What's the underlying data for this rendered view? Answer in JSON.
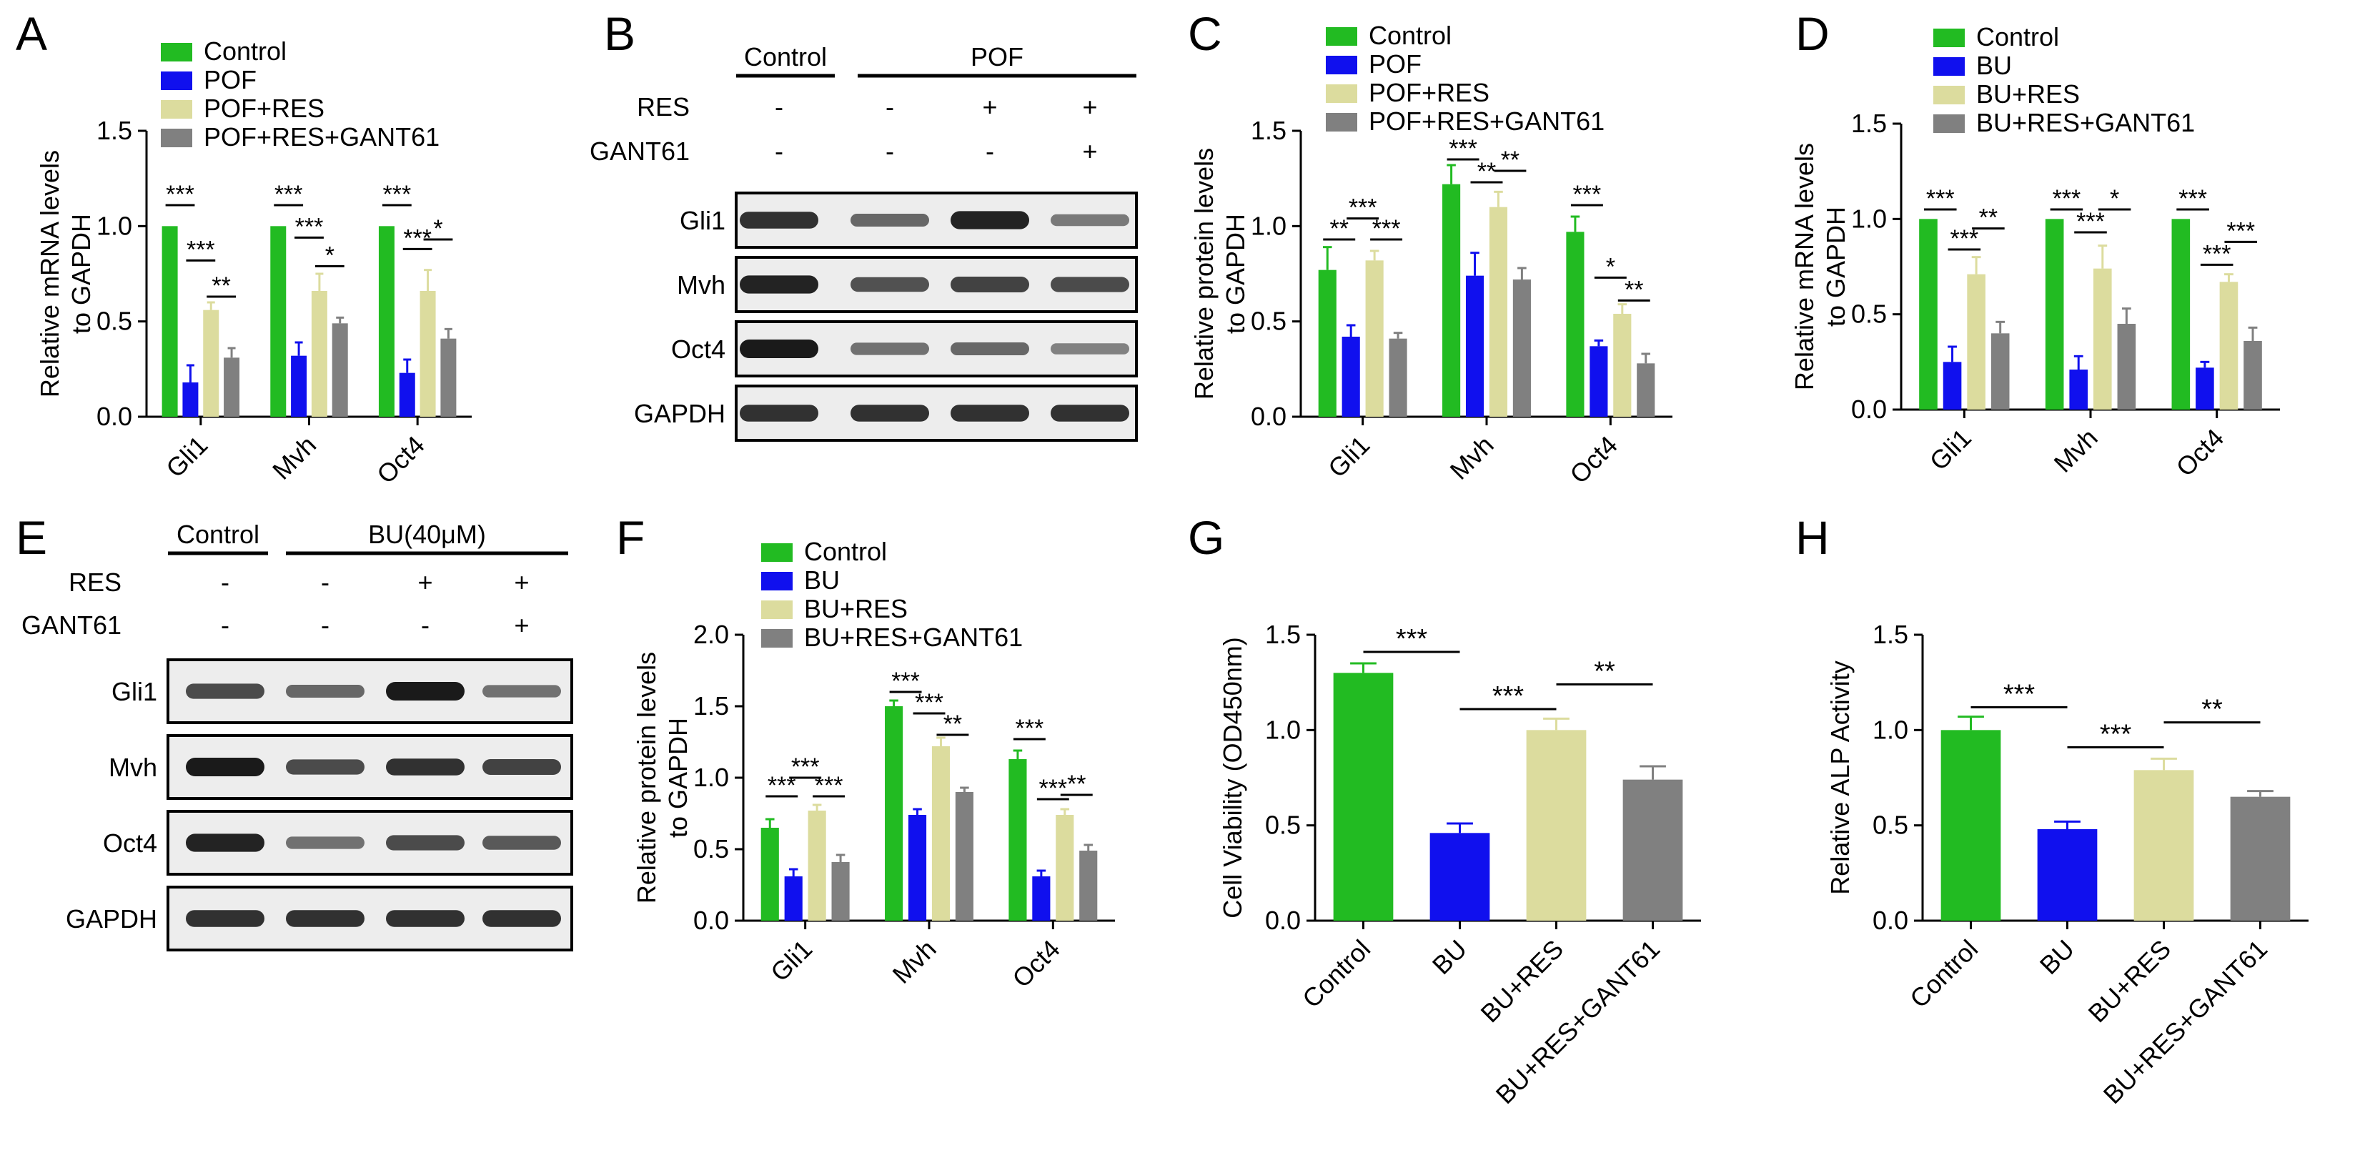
{
  "colors": {
    "Control": "#22bb22",
    "POF": "#1010ee",
    "BU": "#1010ee",
    "POF+RES": "#dcdc9e",
    "BU+RES": "#dcdc9e",
    "POF+RES+GANT61": "#808080",
    "BU+RES+GANT61": "#808080",
    "band": "#1a1a1a"
  },
  "chart_data": [
    {
      "id": "A",
      "type": "bar",
      "panel_label": "A",
      "ylabel": [
        "Relative mRNA levels",
        "to GAPDH"
      ],
      "ylim": [
        0,
        1.5
      ],
      "yticks": [
        "0.0",
        "0.5",
        "1.0",
        "1.5"
      ],
      "categories": [
        "Gli1",
        "Mvh",
        "Oct4"
      ],
      "series": [
        {
          "name": "Control",
          "values": [
            1.0,
            1.0,
            1.0
          ],
          "errors": [
            0,
            0,
            0
          ]
        },
        {
          "name": "POF",
          "values": [
            0.18,
            0.32,
            0.23
          ],
          "errors": [
            0.09,
            0.07,
            0.07
          ]
        },
        {
          "name": "POF+RES",
          "values": [
            0.56,
            0.66,
            0.66
          ],
          "errors": [
            0.04,
            0.09,
            0.11
          ]
        },
        {
          "name": "POF+RES+GANT61",
          "values": [
            0.31,
            0.49,
            0.41
          ],
          "errors": [
            0.05,
            0.03,
            0.05
          ]
        }
      ],
      "legend": "top-left",
      "sig": [
        {
          "cat": 0,
          "from": 0,
          "to": 1,
          "y": 1.11,
          "text": "***"
        },
        {
          "cat": 0,
          "from": 1,
          "to": 2,
          "y": 0.82,
          "text": "***"
        },
        {
          "cat": 0,
          "from": 2,
          "to": 3,
          "y": 0.63,
          "text": "**"
        },
        {
          "cat": 1,
          "from": 0,
          "to": 1,
          "y": 1.11,
          "text": "***"
        },
        {
          "cat": 1,
          "from": 1,
          "to": 2,
          "y": 0.94,
          "text": "***"
        },
        {
          "cat": 1,
          "from": 2,
          "to": 3,
          "y": 0.79,
          "text": "*"
        },
        {
          "cat": 2,
          "from": 0,
          "to": 1,
          "y": 1.11,
          "text": "***"
        },
        {
          "cat": 2,
          "from": 1,
          "to": 2,
          "y": 0.88,
          "text": "***"
        },
        {
          "cat": 2,
          "from": 2,
          "to": 3,
          "y": 0.93,
          "text": "*"
        }
      ]
    },
    {
      "id": "C",
      "type": "bar",
      "panel_label": "C",
      "ylabel": [
        "Relative protein levels",
        "to GAPDH"
      ],
      "ylim": [
        0,
        1.5
      ],
      "yticks": [
        "0.0",
        "0.5",
        "1.0",
        "1.5"
      ],
      "categories": [
        "Gli1",
        "Mvh",
        "Oct4"
      ],
      "series": [
        {
          "name": "Control",
          "values": [
            0.77,
            1.22,
            0.97
          ],
          "errors": [
            0.12,
            0.1,
            0.08
          ]
        },
        {
          "name": "POF",
          "values": [
            0.42,
            0.74,
            0.37
          ],
          "errors": [
            0.06,
            0.12,
            0.03
          ]
        },
        {
          "name": "POF+RES",
          "values": [
            0.82,
            1.1,
            0.54
          ],
          "errors": [
            0.05,
            0.08,
            0.05
          ]
        },
        {
          "name": "POF+RES+GANT61",
          "values": [
            0.41,
            0.72,
            0.28
          ],
          "errors": [
            0.03,
            0.06,
            0.05
          ]
        }
      ],
      "legend": "top-left",
      "sig": [
        {
          "cat": 0,
          "from": 0,
          "to": 1,
          "y": 0.93,
          "text": "**"
        },
        {
          "cat": 0,
          "from": 1,
          "to": 2,
          "y": 1.04,
          "text": "***"
        },
        {
          "cat": 0,
          "from": 2,
          "to": 3,
          "y": 0.93,
          "text": "***"
        },
        {
          "cat": 1,
          "from": 0,
          "to": 1,
          "y": 1.35,
          "text": "***"
        },
        {
          "cat": 1,
          "from": 1,
          "to": 2,
          "y": 1.23,
          "text": "**"
        },
        {
          "cat": 1,
          "from": 2,
          "to": 3,
          "y": 1.29,
          "text": "**"
        },
        {
          "cat": 2,
          "from": 0,
          "to": 1,
          "y": 1.11,
          "text": "***"
        },
        {
          "cat": 2,
          "from": 1,
          "to": 2,
          "y": 0.73,
          "text": "*"
        },
        {
          "cat": 2,
          "from": 2,
          "to": 3,
          "y": 0.61,
          "text": "**"
        }
      ]
    },
    {
      "id": "D",
      "type": "bar",
      "panel_label": "D",
      "ylabel": [
        "Relative mRNA levels",
        "to GAPDH"
      ],
      "ylim": [
        0,
        1.5
      ],
      "yticks": [
        "0.0",
        "0.5",
        "1.0",
        "1.5"
      ],
      "categories": [
        "Gli1",
        "Mvh",
        "Oct4"
      ],
      "series": [
        {
          "name": "Control",
          "values": [
            1.0,
            1.0,
            1.0
          ],
          "errors": [
            0,
            0,
            0
          ]
        },
        {
          "name": "BU",
          "values": [
            0.25,
            0.21,
            0.22
          ],
          "errors": [
            0.08,
            0.07,
            0.03
          ]
        },
        {
          "name": "BU+RES",
          "values": [
            0.71,
            0.74,
            0.67
          ],
          "errors": [
            0.09,
            0.12,
            0.04
          ]
        },
        {
          "name": "BU+RES+GANT61",
          "values": [
            0.4,
            0.45,
            0.36
          ],
          "errors": [
            0.06,
            0.08,
            0.07
          ]
        }
      ],
      "legend": "top-left",
      "sig": [
        {
          "cat": 0,
          "from": 0,
          "to": 1,
          "y": 1.05,
          "text": "***"
        },
        {
          "cat": 0,
          "from": 1,
          "to": 2,
          "y": 0.84,
          "text": "***"
        },
        {
          "cat": 0,
          "from": 2,
          "to": 3,
          "y": 0.95,
          "text": "**"
        },
        {
          "cat": 1,
          "from": 0,
          "to": 1,
          "y": 1.05,
          "text": "***"
        },
        {
          "cat": 1,
          "from": 1,
          "to": 2,
          "y": 0.93,
          "text": "***"
        },
        {
          "cat": 1,
          "from": 2,
          "to": 3,
          "y": 1.05,
          "text": "*"
        },
        {
          "cat": 2,
          "from": 0,
          "to": 1,
          "y": 1.05,
          "text": "***"
        },
        {
          "cat": 2,
          "from": 1,
          "to": 2,
          "y": 0.76,
          "text": "***"
        },
        {
          "cat": 2,
          "from": 2,
          "to": 3,
          "y": 0.88,
          "text": "***"
        }
      ]
    },
    {
      "id": "F",
      "type": "bar",
      "panel_label": "F",
      "ylabel": [
        "Relative protein levels",
        "to GAPDH"
      ],
      "ylim": [
        0,
        2.0
      ],
      "yticks": [
        "0.0",
        "0.5",
        "1.0",
        "1.5",
        "2.0"
      ],
      "categories": [
        "Gli1",
        "Mvh",
        "Oct4"
      ],
      "series": [
        {
          "name": "Control",
          "values": [
            0.65,
            1.5,
            1.13
          ],
          "errors": [
            0.06,
            0.04,
            0.06
          ]
        },
        {
          "name": "BU",
          "values": [
            0.31,
            0.74,
            0.31
          ],
          "errors": [
            0.05,
            0.04,
            0.04
          ]
        },
        {
          "name": "BU+RES",
          "values": [
            0.77,
            1.22,
            0.74
          ],
          "errors": [
            0.04,
            0.06,
            0.04
          ]
        },
        {
          "name": "BU+RES+GANT61",
          "values": [
            0.41,
            0.9,
            0.49
          ],
          "errors": [
            0.05,
            0.03,
            0.04
          ]
        }
      ],
      "legend": "top-left",
      "sig": [
        {
          "cat": 0,
          "from": 0,
          "to": 1,
          "y": 0.87,
          "text": "***"
        },
        {
          "cat": 0,
          "from": 1,
          "to": 2,
          "y": 1.0,
          "text": "***"
        },
        {
          "cat": 0,
          "from": 2,
          "to": 3,
          "y": 0.87,
          "text": "***"
        },
        {
          "cat": 1,
          "from": 0,
          "to": 1,
          "y": 1.6,
          "text": "***"
        },
        {
          "cat": 1,
          "from": 1,
          "to": 2,
          "y": 1.45,
          "text": "***"
        },
        {
          "cat": 1,
          "from": 2,
          "to": 3,
          "y": 1.3,
          "text": "**"
        },
        {
          "cat": 2,
          "from": 0,
          "to": 1,
          "y": 1.27,
          "text": "***"
        },
        {
          "cat": 2,
          "from": 1,
          "to": 2,
          "y": 0.85,
          "text": "***"
        },
        {
          "cat": 2,
          "from": 2,
          "to": 3,
          "y": 0.88,
          "text": "**"
        }
      ]
    },
    {
      "id": "G",
      "type": "bar",
      "panel_label": "G",
      "ylabel": [
        "Cell Viability (OD450nm)"
      ],
      "ylim": [
        0,
        1.5
      ],
      "yticks": [
        "0.0",
        "0.5",
        "1.0",
        "1.5"
      ],
      "categories": [
        "Control",
        "BU",
        "BU+RES",
        "BU+RES+GANT61"
      ],
      "values": [
        1.3,
        0.46,
        1.0,
        0.74
      ],
      "errors": [
        0.05,
        0.05,
        0.06,
        0.07
      ],
      "sig": [
        {
          "from": 0,
          "to": 1,
          "y": 1.41,
          "text": "***"
        },
        {
          "from": 1,
          "to": 2,
          "y": 1.11,
          "text": "***"
        },
        {
          "from": 2,
          "to": 3,
          "y": 1.24,
          "text": "**"
        }
      ]
    },
    {
      "id": "H",
      "type": "bar",
      "panel_label": "H",
      "ylabel": [
        "Relative ALP Activity"
      ],
      "ylim": [
        0,
        1.5
      ],
      "yticks": [
        "0.0",
        "0.5",
        "1.0",
        "1.5"
      ],
      "categories": [
        "Control",
        "BU",
        "BU+RES",
        "BU+RES+GANT61"
      ],
      "values": [
        1.0,
        0.48,
        0.79,
        0.65
      ],
      "errors": [
        0.07,
        0.04,
        0.06,
        0.03
      ],
      "sig": [
        {
          "from": 0,
          "to": 1,
          "y": 1.12,
          "text": "***"
        },
        {
          "from": 1,
          "to": 2,
          "y": 0.91,
          "text": "***"
        },
        {
          "from": 2,
          "to": 3,
          "y": 1.04,
          "text": "**"
        }
      ]
    }
  ],
  "blots": [
    {
      "id": "B",
      "panel_label": "B",
      "group_control": "Control",
      "group_treated": "POF",
      "treat_rows": [
        {
          "label": "RES",
          "marks": [
            "-",
            "-",
            "+",
            "+"
          ]
        },
        {
          "label": "GANT61",
          "marks": [
            "-",
            "-",
            "-",
            "+"
          ]
        }
      ],
      "band_rows": [
        {
          "label": "Gli1",
          "intensity": [
            0.85,
            0.5,
            0.95,
            0.4
          ]
        },
        {
          "label": "Mvh",
          "intensity": [
            0.95,
            0.65,
            0.75,
            0.7
          ]
        },
        {
          "label": "Oct4",
          "intensity": [
            1.0,
            0.45,
            0.5,
            0.35
          ]
        },
        {
          "label": "GAPDH",
          "intensity": [
            0.85,
            0.85,
            0.85,
            0.85
          ]
        }
      ]
    },
    {
      "id": "E",
      "panel_label": "E",
      "group_control": "Control",
      "group_treated": "BU(40μM)",
      "treat_rows": [
        {
          "label": "RES",
          "marks": [
            "-",
            "-",
            "+",
            "+"
          ]
        },
        {
          "label": "GANT61",
          "marks": [
            "-",
            "-",
            "-",
            "+"
          ]
        }
      ],
      "band_rows": [
        {
          "label": "Gli1",
          "intensity": [
            0.7,
            0.5,
            1.0,
            0.45
          ]
        },
        {
          "label": "Mvh",
          "intensity": [
            1.0,
            0.7,
            0.85,
            0.75
          ]
        },
        {
          "label": "Oct4",
          "intensity": [
            0.95,
            0.45,
            0.7,
            0.6
          ]
        },
        {
          "label": "GAPDH",
          "intensity": [
            0.85,
            0.85,
            0.85,
            0.85
          ]
        }
      ]
    }
  ]
}
